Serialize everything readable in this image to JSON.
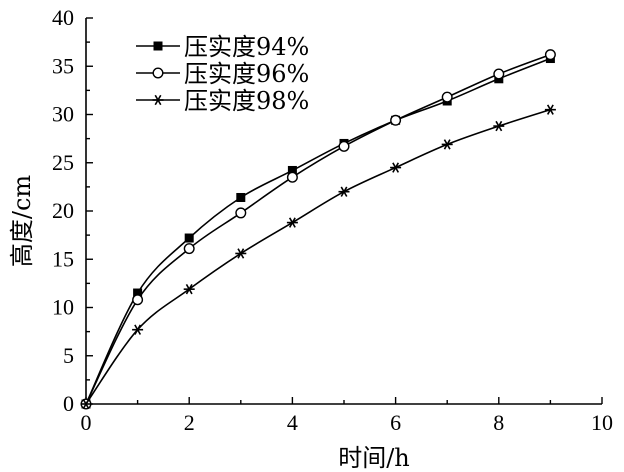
{
  "chart_data": {
    "type": "line",
    "xlabel": "时间/h",
    "ylabel": "高度/cm",
    "xlim": [
      0,
      10
    ],
    "ylim": [
      0,
      40
    ],
    "xticks": [
      0,
      2,
      4,
      6,
      8,
      10
    ],
    "yticks": [
      0,
      5,
      10,
      15,
      20,
      25,
      30,
      35,
      40
    ],
    "grid": false,
    "legend_position": "top-left",
    "series": [
      {
        "name": "压实度94%",
        "marker": "filled-square",
        "x": [
          0,
          1,
          2,
          3,
          4,
          5,
          6,
          7,
          8,
          9
        ],
        "y": [
          0,
          11.5,
          17.2,
          21.4,
          24.2,
          27.0,
          29.4,
          31.4,
          33.7,
          35.8
        ]
      },
      {
        "name": "压实度96%",
        "marker": "open-circle",
        "x": [
          0,
          1,
          2,
          3,
          4,
          5,
          6,
          7,
          8,
          9
        ],
        "y": [
          0,
          10.8,
          16.1,
          19.8,
          23.5,
          26.7,
          29.4,
          31.8,
          34.2,
          36.2
        ]
      },
      {
        "name": "压实度98%",
        "marker": "asterisk",
        "x": [
          0,
          1,
          2,
          3,
          4,
          5,
          6,
          7,
          8,
          9
        ],
        "y": [
          0,
          7.7,
          11.9,
          15.6,
          18.8,
          22.0,
          24.5,
          26.9,
          28.8,
          30.5
        ]
      }
    ]
  }
}
